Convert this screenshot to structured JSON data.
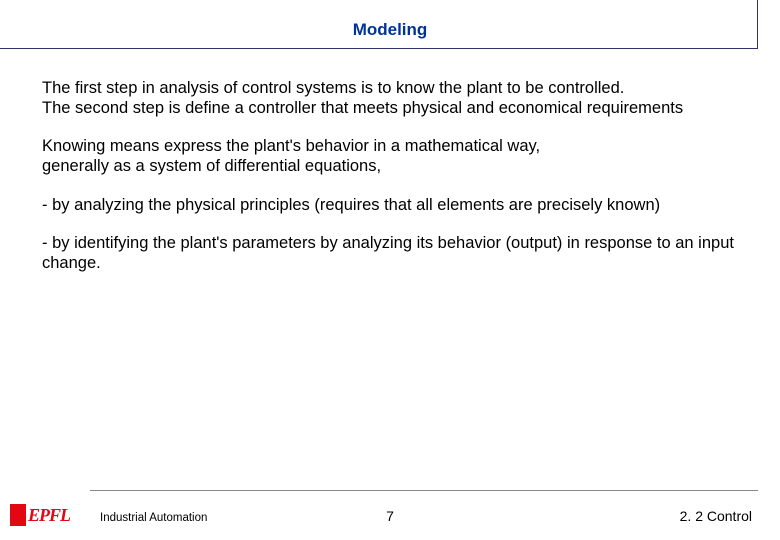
{
  "title": "Modeling",
  "paragraphs": [
    "The first step in analysis of control systems is to know the plant to be controlled.\nThe second step is define a controller that meets physical and economical requirements",
    "Knowing means express the plant's behavior in a mathematical way,\ngenerally as a system of differential equations,",
    "- by analyzing the physical principles (requires that all elements are precisely known)",
    "- by identifying the plant's parameters by analyzing its behavior (output) in response to an input change."
  ],
  "footer": {
    "course": "Industrial Automation",
    "page": "7",
    "section": "2. 2 Control",
    "logo_text": "EPFL"
  },
  "colors": {
    "title_color": "#003399",
    "line_color": "#333366",
    "logo_red": "#e30613",
    "text_color": "#000000",
    "background": "#ffffff"
  },
  "fonts": {
    "body_family": "Arial",
    "body_size_pt": 12,
    "title_size_pt": 13,
    "footer_small_pt": 9
  }
}
